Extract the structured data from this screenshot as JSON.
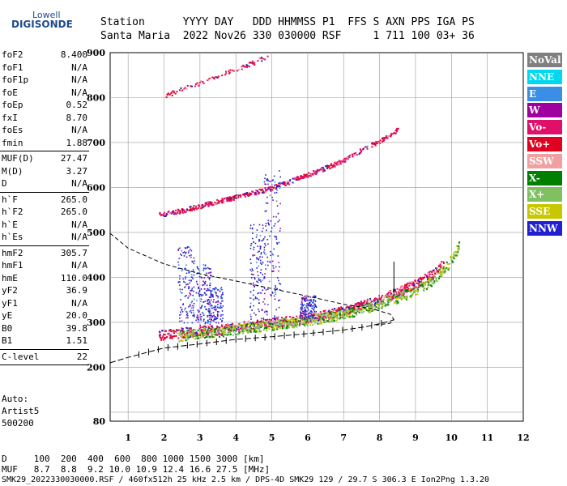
{
  "logo": {
    "line1": "Lowell",
    "line2": "DIGISONDE"
  },
  "header": {
    "row1": "Station      YYYY DAY   DDD HHMMSS P1  FFS S AXN PPS IGA PS",
    "row2": "Santa Maria  2022 Nov26 330 030000 RSF     1 711 100 03+ 36"
  },
  "params": [
    {
      "label": "foF2",
      "value": "8.400"
    },
    {
      "label": "foF1",
      "value": "N/A"
    },
    {
      "label": "foF1p",
      "value": "N/A"
    },
    {
      "label": "foE",
      "value": "N/A"
    },
    {
      "label": "foEp",
      "value": "0.52"
    },
    {
      "label": "fxI",
      "value": "8.70"
    },
    {
      "label": "foEs",
      "value": "N/A"
    },
    {
      "label": "fmin",
      "value": "1.88"
    },
    {
      "label": "MUF(D)",
      "value": "27.47"
    },
    {
      "label": "M(D)",
      "value": "3.27"
    },
    {
      "label": "D",
      "value": "N/A"
    },
    {
      "label": "h`F",
      "value": "265.0"
    },
    {
      "label": "h`F2",
      "value": "265.0"
    },
    {
      "label": "h`E",
      "value": "N/A"
    },
    {
      "label": "h`Es",
      "value": "N/A"
    },
    {
      "label": "hmF2",
      "value": "305.7"
    },
    {
      "label": "hmF1",
      "value": "N/A"
    },
    {
      "label": "hmE",
      "value": "110.0"
    },
    {
      "label": "yF2",
      "value": "36.9"
    },
    {
      "label": "yF1",
      "value": "N/A"
    },
    {
      "label": "yE",
      "value": "20.0"
    },
    {
      "label": "B0",
      "value": "39.8"
    },
    {
      "label": "B1",
      "value": "1.51"
    },
    {
      "label": "C-level",
      "value": "22"
    }
  ],
  "auto": {
    "line1": "Auto:",
    "line2": "Artist5",
    "line3": "500200"
  },
  "legend": [
    {
      "label": "NoVal",
      "color": "#808080"
    },
    {
      "label": "NNE",
      "color": "#00d8f0"
    },
    {
      "label": "E",
      "color": "#3a8ee6"
    },
    {
      "label": "W",
      "color": "#a000a0"
    },
    {
      "label": "Vo-",
      "color": "#e0106a"
    },
    {
      "label": "Vo+",
      "color": "#e00020"
    },
    {
      "label": "SSW",
      "color": "#f0a0a0"
    },
    {
      "label": "X-",
      "color": "#008000"
    },
    {
      "label": "X+",
      "color": "#80c060"
    },
    {
      "label": "SSE",
      "color": "#c8c800"
    },
    {
      "label": "NNW",
      "color": "#2020d0"
    }
  ],
  "footer": {
    "row1": "D     100  200  400  600  800 1000 1500 3000 [km]",
    "row2": "MUF   8.7  8.8  9.2 10.0 10.9 12.4 16.6 27.5 [MHz]",
    "row3": "SMK29_2022330030000.RSF / 460fx512h 25 kHz 2.5 km / DPS-4D SMK29 129 / 29.7 S 306.3 E Ion2Png 1.3.20"
  },
  "chart_data": {
    "type": "scatter",
    "xlabel": "",
    "ylabel": "",
    "xlim": [
      0.5,
      12
    ],
    "ylim": [
      80,
      900
    ],
    "xticks": [
      1,
      2,
      3,
      4,
      5,
      6,
      7,
      8,
      9,
      10,
      11,
      12
    ],
    "yticks": [
      100,
      200,
      300,
      400,
      500,
      600,
      700,
      800,
      900
    ],
    "ytick_labels": [
      "",
      "200",
      "300",
      "400",
      "500",
      "600",
      "700",
      "800",
      "900"
    ],
    "yextra_label": {
      "value": 80,
      "label": "80"
    },
    "grid": true,
    "traces": [
      {
        "name": "O-trace first hop",
        "x": [
          1.85,
          2.5,
          3.0,
          3.5,
          4.0,
          4.5,
          5.0,
          5.5,
          6.0,
          6.5,
          7.0,
          7.5,
          8.0,
          8.4,
          8.8,
          9.2,
          9.5,
          9.8
        ],
        "y": [
          272,
          278,
          282,
          285,
          290,
          295,
          300,
          305,
          311,
          318,
          327,
          338,
          352,
          365,
          380,
          395,
          410,
          435
        ]
      },
      {
        "name": "X-trace first hop",
        "x": [
          2.4,
          3.0,
          3.5,
          4.0,
          4.5,
          5.0,
          5.5,
          6.0,
          6.5,
          7.0,
          7.5,
          8.0,
          8.5,
          9.0,
          9.5,
          9.9,
          10.2
        ],
        "y": [
          270,
          276,
          280,
          285,
          290,
          295,
          300,
          305,
          312,
          320,
          330,
          342,
          356,
          372,
          395,
          430,
          470
        ]
      },
      {
        "name": "O-trace second hop",
        "x": [
          1.85,
          2.5,
          3.0,
          3.5,
          4.0,
          4.5,
          5.0,
          5.5,
          6.0,
          6.5,
          7.0,
          7.5,
          8.0,
          8.5
        ],
        "y": [
          540,
          550,
          560,
          570,
          580,
          590,
          600,
          615,
          630,
          645,
          662,
          685,
          705,
          730
        ]
      },
      {
        "name": "third hop",
        "x": [
          2.0,
          2.5,
          3.0,
          3.5,
          4.0,
          4.5,
          5.0
        ],
        "y": [
          805,
          820,
          835,
          850,
          865,
          880,
          900
        ]
      }
    ],
    "profile": {
      "x": [
        0.5,
        1.0,
        2.0,
        3.0,
        4.0,
        5.0,
        6.0,
        7.0,
        7.6,
        8.0,
        8.3,
        8.4
      ],
      "y": [
        210,
        222,
        243,
        252,
        262,
        268,
        275,
        283,
        290,
        297,
        303,
        306
      ]
    },
    "true_height_dashed": {
      "x": [
        0.5,
        1.0,
        2.0,
        3.0,
        4.0,
        5.0,
        6.0,
        7.0,
        7.8,
        8.3,
        8.4,
        8.3,
        7.9
      ],
      "y": [
        498,
        465,
        430,
        408,
        392,
        375,
        358,
        340,
        330,
        318,
        306,
        298,
        294
      ]
    },
    "foF2_marker": {
      "x": 8.4,
      "y": [
        360,
        435
      ]
    }
  }
}
